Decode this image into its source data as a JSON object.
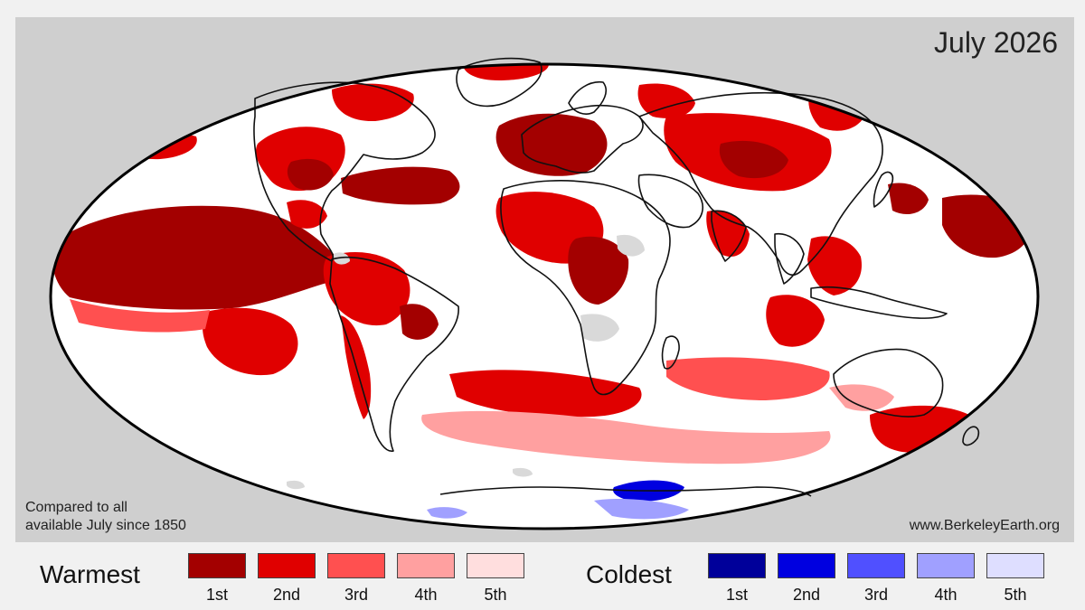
{
  "map": {
    "title": "July 2026",
    "note_line1": "Compared to all",
    "note_line2": "available July since 1850",
    "website": "www.BerkeleyEarth.org",
    "colors": {
      "background": "#cfcfcf",
      "ocean_land_base": "#ffffff",
      "no_data": "#d9d9d9",
      "coastline": "#111111"
    }
  },
  "legend": {
    "warm_title": "Warmest",
    "cold_title": "Coldest",
    "warm": [
      {
        "label": "1st",
        "color": "#a30000"
      },
      {
        "label": "2nd",
        "color": "#e00000"
      },
      {
        "label": "3rd",
        "color": "#ff5050"
      },
      {
        "label": "4th",
        "color": "#ffa0a0"
      },
      {
        "label": "5th",
        "color": "#ffdede"
      }
    ],
    "cold": [
      {
        "label": "1st",
        "color": "#00009a"
      },
      {
        "label": "2nd",
        "color": "#0000e0"
      },
      {
        "label": "3rd",
        "color": "#5050ff"
      },
      {
        "label": "4th",
        "color": "#a0a0ff"
      },
      {
        "label": "5th",
        "color": "#dedeff"
      }
    ]
  }
}
